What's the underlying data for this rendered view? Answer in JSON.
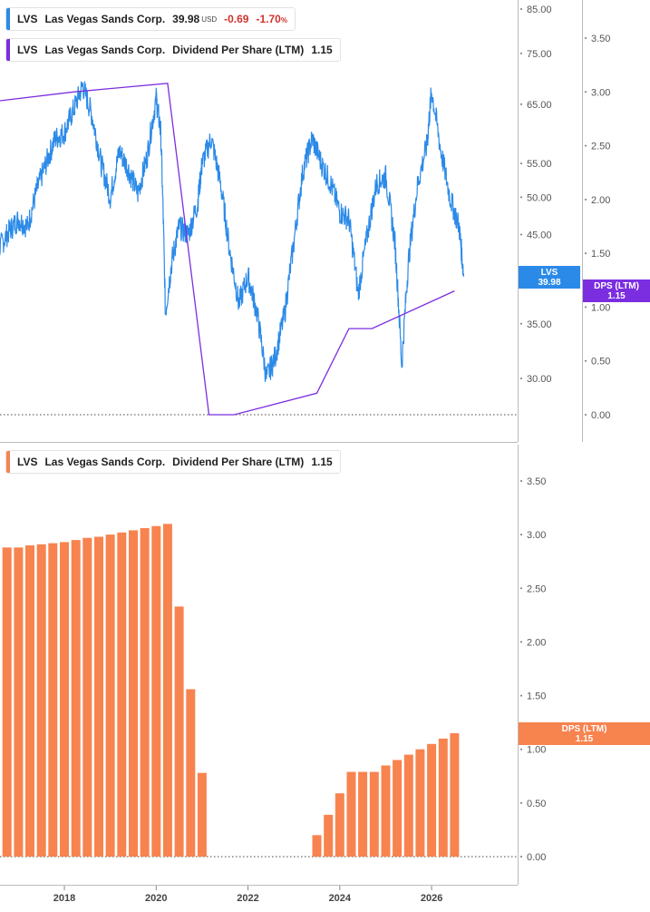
{
  "legends": {
    "price": {
      "ticker": "LVS",
      "name": "Las Vegas Sands Corp.",
      "price": "39.98",
      "currency": "USD",
      "change": "-0.69",
      "change_pct": "-1.70",
      "pct_symbol": "%",
      "color": "#2b8ae8"
    },
    "dps_top": {
      "ticker": "LVS",
      "name": "Las Vegas Sands Corp.",
      "metric": "Dividend Per Share (LTM)",
      "value": "1.15",
      "color": "#7b2ee0"
    },
    "dps_bottom": {
      "ticker": "LVS",
      "name": "Las Vegas Sands Corp.",
      "metric": "Dividend Per Share (LTM)",
      "value": "1.15",
      "color": "#f7834f"
    }
  },
  "tags": {
    "price": {
      "line1": "LVS",
      "line2": "39.98",
      "color": "#2b8ae8"
    },
    "dps_top": {
      "line1": "DPS (LTM)",
      "line2": "1.15",
      "color": "#7b2ee0"
    },
    "dps_bottom": {
      "line1": "DPS (LTM)",
      "line2": "1.15",
      "color": "#f7834f"
    }
  },
  "chart_data": [
    {
      "type": "line",
      "title": "",
      "series": [
        {
          "name": "LVS",
          "color": "#2b8ae8",
          "x": [
            2016.0,
            2016.2,
            2016.4,
            2016.6,
            2016.8,
            2017.0,
            2017.2,
            2017.4,
            2017.6,
            2017.8,
            2018.0,
            2018.2,
            2018.4,
            2018.6,
            2018.8,
            2019.0,
            2019.2,
            2019.4,
            2019.6,
            2019.8,
            2020.0,
            2020.1,
            2020.2,
            2020.35,
            2020.5,
            2020.7,
            2020.9,
            2021.0,
            2021.2,
            2021.4,
            2021.6,
            2021.8,
            2022.0,
            2022.2,
            2022.4,
            2022.6,
            2022.8,
            2023.0,
            2023.2,
            2023.4,
            2023.6,
            2023.8,
            2024.0,
            2024.2,
            2024.4,
            2024.6,
            2024.8,
            2025.0,
            2025.2,
            2025.35,
            2025.5,
            2025.7,
            2025.9,
            2026.0,
            2026.2,
            2026.4,
            2026.6,
            2026.7
          ],
          "y": [
            44.5,
            47.0,
            45.0,
            43.5,
            45.5,
            47.0,
            46.0,
            51.0,
            55.0,
            59.0,
            60.0,
            64.0,
            68.5,
            63.0,
            55.0,
            50.0,
            57.0,
            54.0,
            50.5,
            56.0,
            66.0,
            60.0,
            36.0,
            42.0,
            46.0,
            45.0,
            49.0,
            55.0,
            59.0,
            52.0,
            43.0,
            37.0,
            40.0,
            36.0,
            30.0,
            32.0,
            36.0,
            44.0,
            54.0,
            59.0,
            55.0,
            52.0,
            48.0,
            47.0,
            38.0,
            45.0,
            52.0,
            53.0,
            44.0,
            31.0,
            42.0,
            52.0,
            58.0,
            67.5,
            57.0,
            50.0,
            46.0,
            39.98
          ]
        },
        {
          "name": "DPS (LTM)",
          "color": "#7b2ee0",
          "x": [
            2016.0,
            2016.25,
            2018.2,
            2020.25,
            2021.15,
            2021.7,
            2023.5,
            2024.2,
            2024.7,
            2026.5
          ],
          "y": [
            2.9,
            2.9,
            3.0,
            3.08,
            0.0,
            0.0,
            0.2,
            0.8,
            0.8,
            1.15
          ]
        }
      ],
      "xlabel": "",
      "ylabel": "",
      "xlim": [
        2016.0,
        2027.0
      ],
      "ylim_price": [
        27.0,
        88.0
      ],
      "ylim_dps": [
        -0.1,
        3.9
      ],
      "price_scale": "log",
      "price_ticks": [
        "85.00",
        "75.00",
        "65.00",
        "55.00",
        "50.00",
        "45.00",
        "35.00",
        "30.00"
      ],
      "dps_ticks": [
        "3.50",
        "3.00",
        "2.50",
        "2.00",
        "1.50",
        "1.00",
        "0.50",
        "0.00"
      ],
      "grid": false
    },
    {
      "type": "bar",
      "title": "",
      "series": [
        {
          "name": "Dividend Per Share (LTM)",
          "color": "#f7834f",
          "x": [
            2016.0,
            2016.25,
            2016.5,
            2016.75,
            2017.0,
            2017.25,
            2017.5,
            2017.75,
            2018.0,
            2018.25,
            2018.5,
            2018.75,
            2019.0,
            2019.25,
            2019.5,
            2019.75,
            2020.0,
            2020.25,
            2020.5,
            2020.75,
            2021.0,
            2023.5,
            2023.75,
            2024.0,
            2024.25,
            2024.5,
            2024.75,
            2025.0,
            2025.25,
            2025.5,
            2025.75,
            2026.0,
            2026.25,
            2026.5
          ],
          "values": [
            2.8,
            2.84,
            2.86,
            2.88,
            2.88,
            2.9,
            2.91,
            2.92,
            2.93,
            2.95,
            2.97,
            2.98,
            3.0,
            3.02,
            3.04,
            3.06,
            3.08,
            3.1,
            2.33,
            1.56,
            0.78,
            0.2,
            0.39,
            0.59,
            0.79,
            0.79,
            0.79,
            0.85,
            0.9,
            0.95,
            1.0,
            1.05,
            1.1,
            1.15
          ]
        }
      ],
      "xlabel": "",
      "ylabel": "",
      "xlim": [
        2016.0,
        2027.0
      ],
      "ylim": [
        -0.1,
        3.9
      ],
      "ticks": [
        "3.50",
        "3.00",
        "2.50",
        "2.00",
        "1.50",
        "1.00",
        "0.50",
        "0.00"
      ],
      "x_ticks": [
        "2018",
        "2020",
        "2022",
        "2024",
        "2026"
      ],
      "grid": false
    }
  ]
}
